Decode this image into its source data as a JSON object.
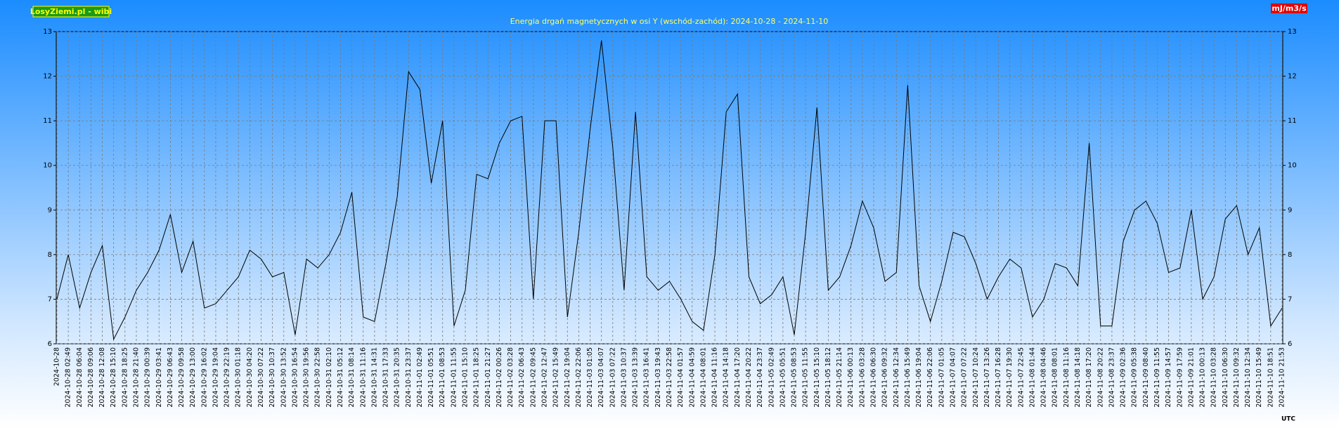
{
  "badge": "LosyZiemi.pl - wibi",
  "unit_badge": "mJ/m3/s",
  "timezone": "UTC",
  "chart_data": {
    "type": "line",
    "title": "Energia drgań magnetycznych w osi Y (wschód-zachód): 2024-10-28 - 2024-11-10",
    "categories": [
      "2024-10-28",
      "2024-10-28 02:49",
      "2024-10-28 06:04",
      "2024-10-28 09:06",
      "2024-10-28 12:08",
      "2024-10-28 15:10",
      "2024-10-28 18:25",
      "2024-10-28 21:40",
      "2024-10-29 00:39",
      "2024-10-29 03:41",
      "2024-10-29 06:43",
      "2024-10-29 09:58",
      "2024-10-29 13:00",
      "2024-10-29 16:02",
      "2024-10-29 19:04",
      "2024-10-29 22:19",
      "2024-10-30 01:18",
      "2024-10-30 04:20",
      "2024-10-30 07:22",
      "2024-10-30 10:37",
      "2024-10-30 13:52",
      "2024-10-30 16:54",
      "2024-10-30 19:56",
      "2024-10-30 22:58",
      "2024-10-31 02:10",
      "2024-10-31 05:12",
      "2024-10-31 08:14",
      "2024-10-31 11:16",
      "2024-10-31 14:31",
      "2024-10-31 17:33",
      "2024-10-31 20:35",
      "2024-10-31 23:37",
      "2024-11-01 02:49",
      "2024-11-01 05:51",
      "2024-11-01 08:53",
      "2024-11-01 11:55",
      "2024-11-01 15:10",
      "2024-11-01 18:25",
      "2024-11-01 21:27",
      "2024-11-02 00:26",
      "2024-11-02 03:28",
      "2024-11-02 06:43",
      "2024-11-02 09:45",
      "2024-11-02 12:47",
      "2024-11-02 15:49",
      "2024-11-02 19:04",
      "2024-11-02 22:06",
      "2024-11-03 01:05",
      "2024-11-03 04:07",
      "2024-11-03 07:22",
      "2024-11-03 10:37",
      "2024-11-03 13:39",
      "2024-11-03 16:41",
      "2024-11-03 19:43",
      "2024-11-03 22:58",
      "2024-11-04 01:57",
      "2024-11-04 04:59",
      "2024-11-04 08:01",
      "2024-11-04 11:16",
      "2024-11-04 14:18",
      "2024-11-04 17:20",
      "2024-11-04 20:22",
      "2024-11-04 23:37",
      "2024-11-05 02:49",
      "2024-11-05 05:51",
      "2024-11-05 08:53",
      "2024-11-05 11:55",
      "2024-11-05 15:10",
      "2024-11-05 18:12",
      "2024-11-05 21:14",
      "2024-11-06 00:13",
      "2024-11-06 03:28",
      "2024-11-06 06:30",
      "2024-11-06 09:32",
      "2024-11-06 12:34",
      "2024-11-06 15:49",
      "2024-11-06 19:04",
      "2024-11-06 22:06",
      "2024-11-07 01:05",
      "2024-11-07 04:07",
      "2024-11-07 07:22",
      "2024-11-07 10:24",
      "2024-11-07 13:26",
      "2024-11-07 16:28",
      "2024-11-07 19:30",
      "2024-11-07 22:45",
      "2024-11-08 01:44",
      "2024-11-08 04:46",
      "2024-11-08 08:01",
      "2024-11-08 11:16",
      "2024-11-08 14:18",
      "2024-11-08 17:20",
      "2024-11-08 20:22",
      "2024-11-08 23:37",
      "2024-11-09 02:36",
      "2024-11-09 05:38",
      "2024-11-09 08:40",
      "2024-11-09 11:55",
      "2024-11-09 14:57",
      "2024-11-09 17:59",
      "2024-11-09 21:01",
      "2024-11-10 00:13",
      "2024-11-10 03:28",
      "2024-11-10 06:30",
      "2024-11-10 09:32",
      "2024-11-10 12:34",
      "2024-11-10 15:49",
      "2024-11-10 18:51",
      "2024-11-10 21:53"
    ],
    "values": [
      7.0,
      8.0,
      6.8,
      7.6,
      8.2,
      6.1,
      6.6,
      7.2,
      7.6,
      8.1,
      8.9,
      7.6,
      8.3,
      6.8,
      6.9,
      7.2,
      7.5,
      8.1,
      7.9,
      7.5,
      7.6,
      6.2,
      7.9,
      7.7,
      8.0,
      8.5,
      9.4,
      6.6,
      6.5,
      7.8,
      9.3,
      12.1,
      11.7,
      9.6,
      11.0,
      6.4,
      7.2,
      9.8,
      9.7,
      10.5,
      11.0,
      11.1,
      7.0,
      11.0,
      11.0,
      6.6,
      8.5,
      10.8,
      12.8,
      10.4,
      7.2,
      11.2,
      7.5,
      7.2,
      7.4,
      7.0,
      6.5,
      6.3,
      8.0,
      11.2,
      11.6,
      7.5,
      6.9,
      7.1,
      7.5,
      6.2,
      8.5,
      11.3,
      7.2,
      7.5,
      8.2,
      9.2,
      8.6,
      7.4,
      7.6,
      11.8,
      7.3,
      6.5,
      7.4,
      8.5,
      8.4,
      7.8,
      7.0,
      7.5,
      7.9,
      7.7,
      6.6,
      7.0,
      7.8,
      7.7,
      7.3,
      10.5,
      6.4,
      6.4,
      8.3,
      9.0,
      9.2,
      8.7,
      7.6,
      7.7,
      9.0,
      7.0,
      7.5,
      8.8,
      9.1,
      8.0,
      8.6,
      6.4,
      6.8
    ],
    "color": "#000000",
    "ylim": [
      6,
      13
    ],
    "yticks": [
      6,
      7,
      8,
      9,
      10,
      11,
      12,
      13
    ],
    "grid": true
  }
}
